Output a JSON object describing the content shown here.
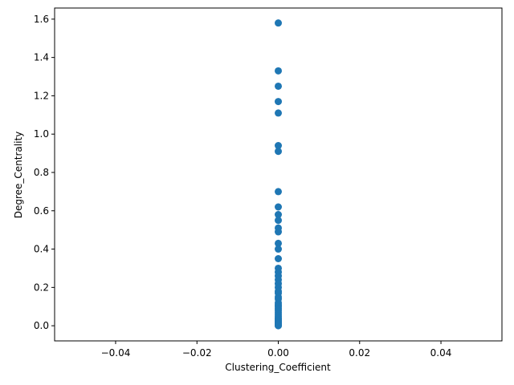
{
  "chart_data": {
    "type": "scatter",
    "title": "",
    "xlabel": "Clustering_Coefficient",
    "ylabel": "Degree_Centrality",
    "xlim": [
      -0.055,
      0.055
    ],
    "ylim": [
      -0.079,
      1.658
    ],
    "xticks": [
      -0.04,
      -0.02,
      0.0,
      0.02,
      0.04
    ],
    "xtick_labels": [
      "−0.04",
      "−0.02",
      "0.00",
      "0.02",
      "0.04"
    ],
    "yticks": [
      0.0,
      0.2,
      0.4,
      0.6,
      0.8,
      1.0,
      1.2,
      1.4,
      1.6
    ],
    "ytick_labels": [
      "0.0",
      "0.2",
      "0.4",
      "0.6",
      "0.8",
      "1.0",
      "1.2",
      "1.4",
      "1.6"
    ],
    "grid": false,
    "marker_color": "#1f77b4",
    "points": [
      {
        "x": 0.0,
        "y": 1.58
      },
      {
        "x": 0.0,
        "y": 1.33
      },
      {
        "x": 0.0,
        "y": 1.25
      },
      {
        "x": 0.0,
        "y": 1.17
      },
      {
        "x": 0.0,
        "y": 1.11
      },
      {
        "x": 0.0,
        "y": 0.94
      },
      {
        "x": 0.0,
        "y": 0.91
      },
      {
        "x": 0.0,
        "y": 0.7
      },
      {
        "x": 0.0,
        "y": 0.62
      },
      {
        "x": 0.0,
        "y": 0.58
      },
      {
        "x": 0.0,
        "y": 0.55
      },
      {
        "x": 0.0,
        "y": 0.51
      },
      {
        "x": 0.0,
        "y": 0.49
      },
      {
        "x": 0.0,
        "y": 0.43
      },
      {
        "x": 0.0,
        "y": 0.4
      },
      {
        "x": 0.0,
        "y": 0.35
      },
      {
        "x": 0.0,
        "y": 0.3
      },
      {
        "x": 0.0,
        "y": 0.28
      },
      {
        "x": 0.0,
        "y": 0.26
      },
      {
        "x": 0.0,
        "y": 0.24
      },
      {
        "x": 0.0,
        "y": 0.22
      },
      {
        "x": 0.0,
        "y": 0.2
      },
      {
        "x": 0.0,
        "y": 0.18
      },
      {
        "x": 0.0,
        "y": 0.17
      },
      {
        "x": 0.0,
        "y": 0.15
      },
      {
        "x": 0.0,
        "y": 0.14
      },
      {
        "x": 0.0,
        "y": 0.12
      },
      {
        "x": 0.0,
        "y": 0.11
      },
      {
        "x": 0.0,
        "y": 0.1
      },
      {
        "x": 0.0,
        "y": 0.09
      },
      {
        "x": 0.0,
        "y": 0.08
      },
      {
        "x": 0.0,
        "y": 0.07
      },
      {
        "x": 0.0,
        "y": 0.06
      },
      {
        "x": 0.0,
        "y": 0.05
      },
      {
        "x": 0.0,
        "y": 0.04
      },
      {
        "x": 0.0,
        "y": 0.035
      },
      {
        "x": 0.0,
        "y": 0.03
      },
      {
        "x": 0.0,
        "y": 0.025
      },
      {
        "x": 0.0,
        "y": 0.02
      },
      {
        "x": 0.0,
        "y": 0.015
      },
      {
        "x": 0.0,
        "y": 0.01
      },
      {
        "x": 0.0,
        "y": 0.005
      },
      {
        "x": 0.0,
        "y": 0.002
      },
      {
        "x": 0.0,
        "y": 0.0
      }
    ]
  }
}
